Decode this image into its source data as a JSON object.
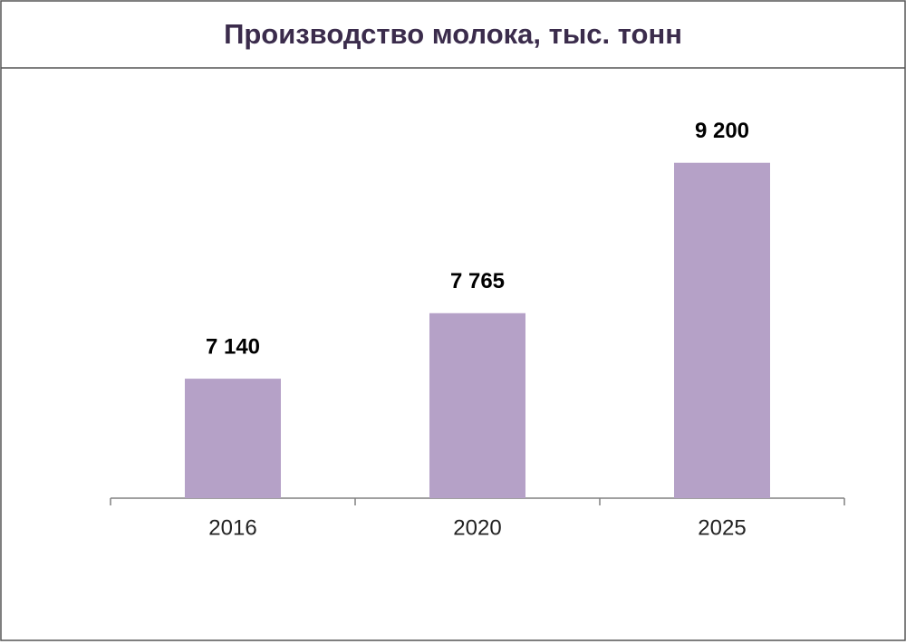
{
  "chart_data": {
    "type": "bar",
    "title": "Производство молока, тыс. тонн",
    "categories": [
      "2016",
      "2020",
      "2025"
    ],
    "values": [
      7140,
      7765,
      9200
    ],
    "value_labels": [
      "7 140",
      "7 765",
      "9 200"
    ],
    "color": "#b5a1c7",
    "ylim": [
      6000,
      9500
    ]
  }
}
